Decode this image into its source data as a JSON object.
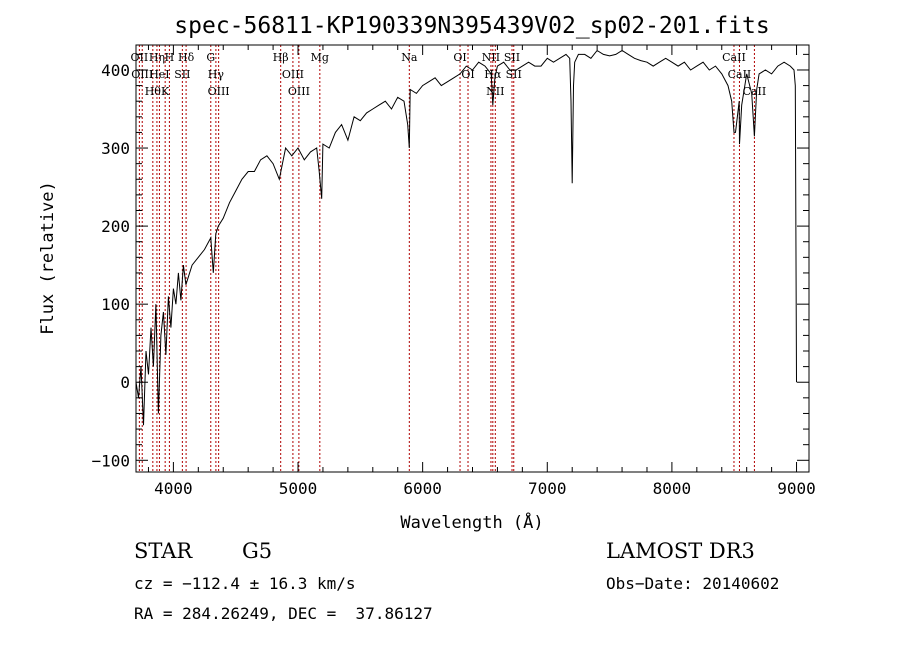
{
  "chart_data": {
    "type": "line",
    "title": "spec-56811-KP190339N395439V02_sp02-201.fits",
    "xlabel": "Wavelength (Å)",
    "ylabel": "Flux (relative)",
    "xlim": [
      3700,
      9100
    ],
    "ylim": [
      -115,
      432
    ],
    "x_ticks": [
      4000,
      5000,
      6000,
      7000,
      8000,
      9000
    ],
    "y_ticks": [
      -100,
      0,
      100,
      200,
      300,
      400
    ],
    "grid": false,
    "series": [
      {
        "x": [
          3700,
          3720,
          3740,
          3760,
          3780,
          3800,
          3820,
          3840,
          3860,
          3880,
          3900,
          3920,
          3940,
          3960,
          3980,
          4000,
          4020,
          4040,
          4060,
          4080,
          4100,
          4150,
          4200,
          4250,
          4300,
          4320,
          4340,
          4360,
          4400,
          4450,
          4500,
          4550,
          4600,
          4650,
          4700,
          4750,
          4800,
          4850,
          4900,
          4950,
          5000,
          5050,
          5100,
          5150,
          5170,
          5190,
          5200,
          5250,
          5300,
          5350,
          5400,
          5450,
          5500,
          5550,
          5600,
          5650,
          5700,
          5750,
          5800,
          5850,
          5880,
          5893,
          5900,
          5950,
          6000,
          6050,
          6100,
          6150,
          6200,
          6250,
          6300,
          6350,
          6400,
          6450,
          6500,
          6550,
          6563,
          6580,
          6600,
          6650,
          6700,
          6750,
          6800,
          6850,
          6900,
          6950,
          7000,
          7050,
          7100,
          7150,
          7180,
          7190,
          7200,
          7210,
          7220,
          7250,
          7300,
          7350,
          7400,
          7450,
          7500,
          7550,
          7600,
          7650,
          7700,
          7750,
          7800,
          7850,
          7900,
          7950,
          8000,
          8050,
          8100,
          8150,
          8200,
          8250,
          8300,
          8350,
          8400,
          8450,
          8480,
          8498,
          8510,
          8540,
          8542,
          8560,
          8600,
          8640,
          8662,
          8680,
          8700,
          8750,
          8800,
          8850,
          8900,
          8950,
          8980,
          8990,
          9000
        ],
        "y": [
          0,
          -20,
          20,
          -55,
          40,
          10,
          70,
          20,
          100,
          -40,
          60,
          90,
          35,
          110,
          70,
          120,
          100,
          140,
          105,
          150,
          125,
          150,
          160,
          170,
          185,
          140,
          190,
          200,
          210,
          230,
          245,
          260,
          270,
          270,
          285,
          290,
          280,
          260,
          300,
          290,
          300,
          285,
          295,
          300,
          270,
          235,
          305,
          300,
          320,
          330,
          310,
          340,
          335,
          345,
          350,
          355,
          360,
          350,
          365,
          360,
          330,
          300,
          375,
          370,
          380,
          385,
          390,
          380,
          385,
          390,
          395,
          405,
          400,
          410,
          405,
          395,
          355,
          390,
          405,
          410,
          400,
          400,
          405,
          410,
          405,
          405,
          415,
          410,
          415,
          420,
          415,
          360,
          255,
          380,
          410,
          420,
          420,
          415,
          425,
          420,
          418,
          420,
          425,
          420,
          415,
          412,
          410,
          405,
          410,
          415,
          410,
          405,
          410,
          400,
          405,
          410,
          400,
          405,
          395,
          380,
          360,
          320,
          320,
          360,
          305,
          355,
          395,
          370,
          315,
          375,
          395,
          400,
          395,
          405,
          410,
          405,
          400,
          380,
          0
        ]
      }
    ],
    "annotations": [
      {
        "wavelength": 3727,
        "label": "OII"
      },
      {
        "wavelength": 3750,
        "label": "OIII"
      },
      {
        "wavelength": 3835,
        "label": "Hθ"
      },
      {
        "wavelength": 3868,
        "label": "Hη"
      },
      {
        "wavelength": 3888,
        "label": "HeI"
      },
      {
        "wavelength": 3934,
        "label": "K"
      },
      {
        "wavelength": 3968,
        "label": "H"
      },
      {
        "wavelength": 4072,
        "label": "SII"
      },
      {
        "wavelength": 4102,
        "label": "Hδ"
      },
      {
        "wavelength": 4300,
        "label": "G"
      },
      {
        "wavelength": 4341,
        "label": "Hγ"
      },
      {
        "wavelength": 4363,
        "label": "OIII"
      },
      {
        "wavelength": 4861,
        "label": "Hβ"
      },
      {
        "wavelength": 4959,
        "label": "OIII"
      },
      {
        "wavelength": 5007,
        "label": "OIII"
      },
      {
        "wavelength": 5175,
        "label": "Mg"
      },
      {
        "wavelength": 5893,
        "label": "Na"
      },
      {
        "wavelength": 6300,
        "label": "OI"
      },
      {
        "wavelength": 6364,
        "label": "OI"
      },
      {
        "wavelength": 6548,
        "label": "NII"
      },
      {
        "wavelength": 6563,
        "label": "Hα"
      },
      {
        "wavelength": 6583,
        "label": "NII"
      },
      {
        "wavelength": 6717,
        "label": "SII"
      },
      {
        "wavelength": 6731,
        "label": "SII"
      },
      {
        "wavelength": 8498,
        "label": "CaII"
      },
      {
        "wavelength": 8542,
        "label": "CaII"
      },
      {
        "wavelength": 8662,
        "label": "CaII"
      }
    ],
    "annotation_color": "#b00000"
  },
  "footer": {
    "object_class": "STAR",
    "subclass": "G5",
    "survey": "LAMOST DR3",
    "cz": "cz = −112.4 ± 16.3 km/s",
    "obs_date": "Obs−Date: 20140602",
    "coords": "RA = 284.26249, DEC =  37.86127"
  }
}
